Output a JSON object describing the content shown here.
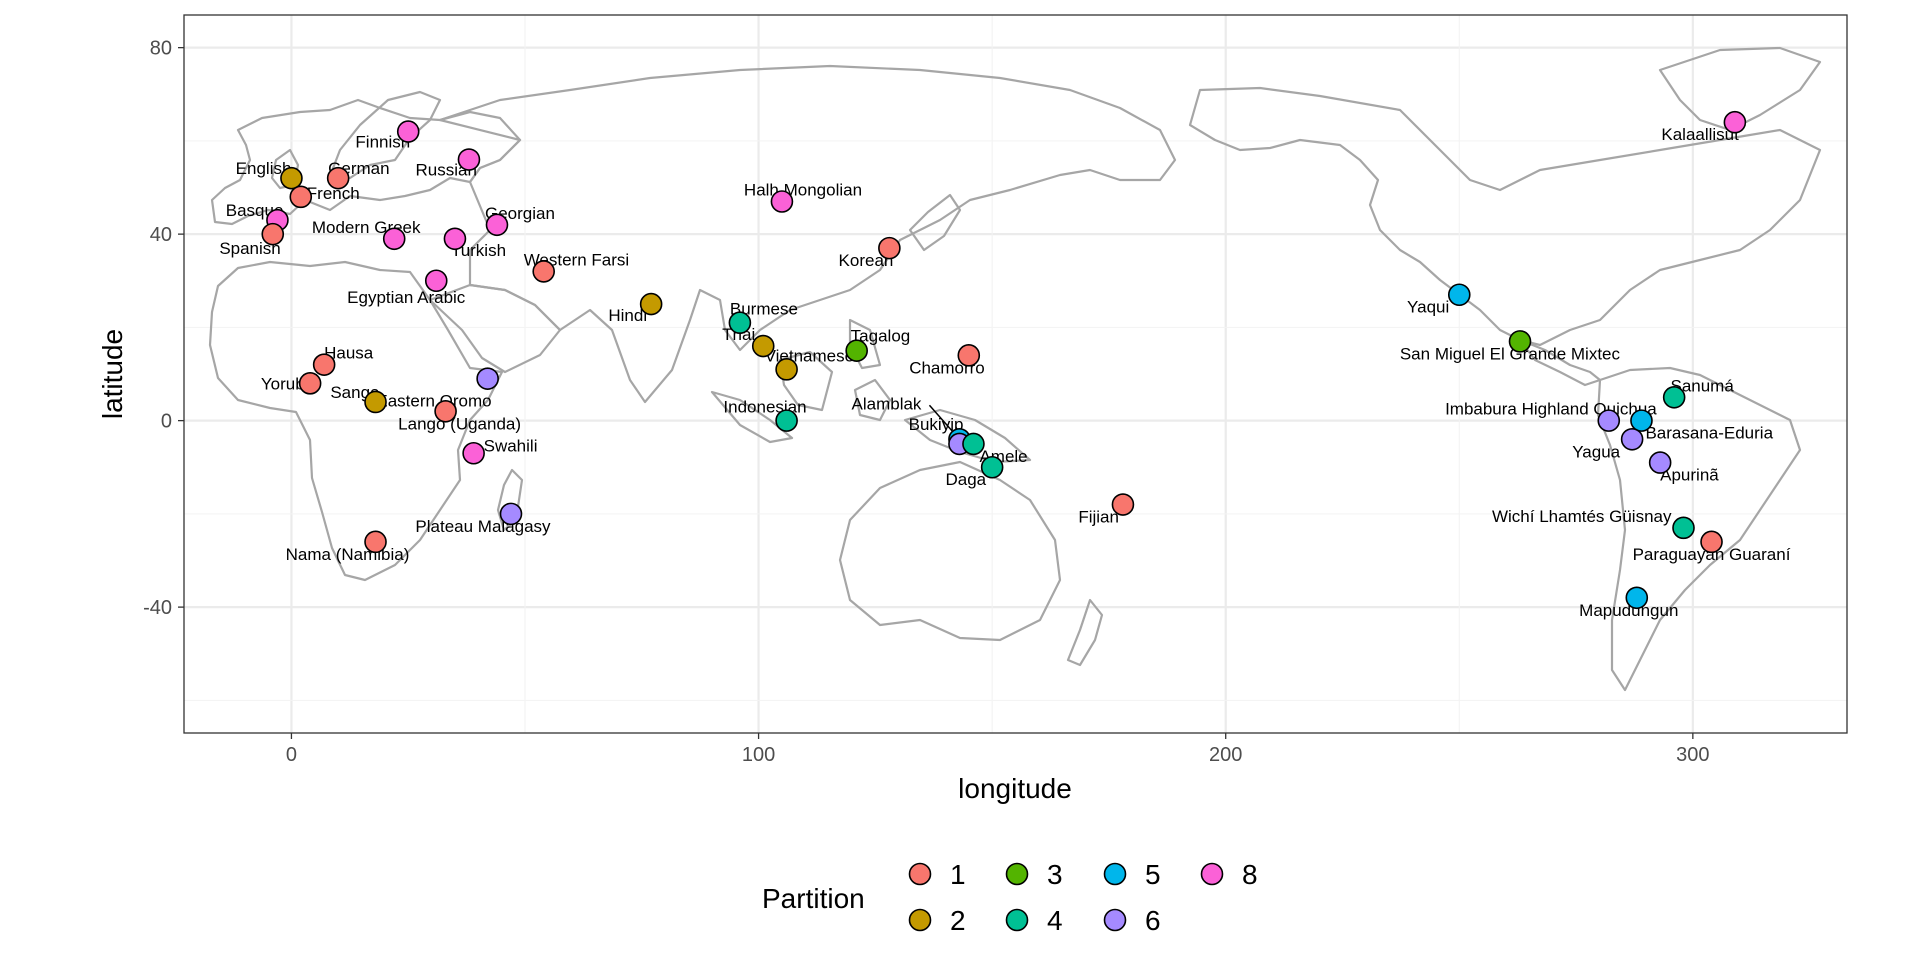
{
  "chart_data": {
    "type": "scatter",
    "xlabel": "longitude",
    "ylabel": "latitude",
    "xlim": [
      -23,
      333
    ],
    "ylim": [
      -67,
      87
    ],
    "x_ticks": [
      0,
      100,
      200,
      300
    ],
    "y_ticks": [
      80,
      40,
      0,
      -40
    ],
    "x_tick_labels": [
      "0",
      "100",
      "200",
      "300"
    ],
    "y_tick_labels": [
      "80",
      "40",
      "0",
      "-40"
    ],
    "grid": true,
    "legend": {
      "title": "Partition",
      "placement": "bottom",
      "entries": [
        {
          "label": "1",
          "color": "#F8766D"
        },
        {
          "label": "2",
          "color": "#C49A00"
        },
        {
          "label": "3",
          "color": "#53B400"
        },
        {
          "label": "4",
          "color": "#00C094"
        },
        {
          "label": "5",
          "color": "#00B6EB"
        },
        {
          "label": "6",
          "color": "#A58AFF"
        },
        {
          "label": "8",
          "color": "#FB61D7"
        }
      ]
    },
    "points": [
      {
        "name": "English",
        "lon": 0,
        "lat": 52,
        "partition": "2",
        "anchor": "end",
        "dx": 0,
        "dy": -4
      },
      {
        "name": "German",
        "lon": 10,
        "lat": 52,
        "partition": "1",
        "anchor": "start",
        "dx": -10,
        "dy": -4
      },
      {
        "name": "French",
        "lon": 2,
        "lat": 48,
        "partition": "1",
        "anchor": "start",
        "dx": 6,
        "dy": 2
      },
      {
        "name": "Finnish",
        "lon": 25,
        "lat": 62,
        "partition": "8",
        "anchor": "end",
        "dx": 2,
        "dy": 16
      },
      {
        "name": "Russian",
        "lon": 38,
        "lat": 56,
        "partition": "8",
        "anchor": "end",
        "dx": 8,
        "dy": 16
      },
      {
        "name": "Basque",
        "lon": -3,
        "lat": 43,
        "partition": "8",
        "anchor": "end",
        "dx": 6,
        "dy": -4
      },
      {
        "name": "Modern Greek",
        "lon": 22,
        "lat": 39,
        "partition": "8",
        "anchor": "middle",
        "dx": -28,
        "dy": -6
      },
      {
        "name": "Spanish",
        "lon": -4,
        "lat": 40,
        "partition": "1",
        "anchor": "end",
        "dx": 8,
        "dy": 20
      },
      {
        "name": "Georgian",
        "lon": 44,
        "lat": 42,
        "partition": "8",
        "anchor": "start",
        "dx": -12,
        "dy": -6
      },
      {
        "name": "Turkish",
        "lon": 35,
        "lat": 39,
        "partition": "8",
        "anchor": "start",
        "dx": -4,
        "dy": 17
      },
      {
        "name": "Western Farsi",
        "lon": 54,
        "lat": 32,
        "partition": "1",
        "anchor": "start",
        "dx": -20,
        "dy": -6
      },
      {
        "name": "Egyptian Arabic",
        "lon": 31,
        "lat": 30,
        "partition": "8",
        "anchor": "middle",
        "dx": -30,
        "dy": 22
      },
      {
        "name": "Halh Mongolian",
        "lon": 105,
        "lat": 47,
        "partition": "8",
        "anchor": "start",
        "dx": -38,
        "dy": -6
      },
      {
        "name": "Korean",
        "lon": 128,
        "lat": 37,
        "partition": "1",
        "anchor": "end",
        "dx": 4,
        "dy": 18
      },
      {
        "name": "Hindi",
        "lon": 77,
        "lat": 25,
        "partition": "2",
        "anchor": "end",
        "dx": -4,
        "dy": 17
      },
      {
        "name": "Burmese",
        "lon": 96,
        "lat": 21,
        "partition": "4",
        "anchor": "start",
        "dx": -10,
        "dy": -8
      },
      {
        "name": "Thai",
        "lon": 101,
        "lat": 16,
        "partition": "2",
        "anchor": "end",
        "dx": -8,
        "dy": -6
      },
      {
        "name": "Vietnamese",
        "lon": 106,
        "lat": 11,
        "partition": "2",
        "anchor": "start",
        "dx": -22,
        "dy": -8
      },
      {
        "name": "Tagalog",
        "lon": 121,
        "lat": 15,
        "partition": "3",
        "anchor": "start",
        "dx": -6,
        "dy": -9
      },
      {
        "name": "Chamorro",
        "lon": 145,
        "lat": 14,
        "partition": "1",
        "anchor": "end",
        "dx": 16,
        "dy": 18
      },
      {
        "name": "Indonesian",
        "lon": 106,
        "lat": 0,
        "partition": "4",
        "anchor": "end",
        "dx": 20,
        "dy": -8
      },
      {
        "name": "Alamblak",
        "lon": 143,
        "lat": -4,
        "partition": "5",
        "anchor": "end",
        "dx": -38,
        "dy": -30
      },
      {
        "name": "Bukiyip",
        "lon": 143,
        "lat": -5,
        "partition": "6",
        "anchor": "end",
        "dx": 4,
        "dy": -14
      },
      {
        "name": "Amele",
        "lon": 146,
        "lat": -5,
        "partition": "4",
        "anchor": "start",
        "dx": 6,
        "dy": 18
      },
      {
        "name": "Daga",
        "lon": 150,
        "lat": -10,
        "partition": "4",
        "anchor": "end",
        "dx": -6,
        "dy": 18
      },
      {
        "name": "Fijian",
        "lon": 178,
        "lat": -18,
        "partition": "1",
        "anchor": "end",
        "dx": -4,
        "dy": 18
      },
      {
        "name": "Hausa",
        "lon": 7,
        "lat": 12,
        "partition": "1",
        "anchor": "start",
        "dx": 0,
        "dy": -6
      },
      {
        "name": "Yoruba",
        "lon": 4,
        "lat": 8,
        "partition": "1",
        "anchor": "end",
        "dx": 4,
        "dy": 6
      },
      {
        "name": "Sango",
        "lon": 18,
        "lat": 4,
        "partition": "2",
        "anchor": "end",
        "dx": 4,
        "dy": -4
      },
      {
        "name": "Eastern Oromo",
        "lon": 42,
        "lat": 9,
        "partition": "6",
        "anchor": "end",
        "dx": 4,
        "dy": 28
      },
      {
        "name": "Lango (Uganda)",
        "lon": 33,
        "lat": 2,
        "partition": "1",
        "anchor": "middle",
        "dx": 14,
        "dy": 18
      },
      {
        "name": "Swahili",
        "lon": 39,
        "lat": -7,
        "partition": "8",
        "anchor": "start",
        "dx": 10,
        "dy": -2
      },
      {
        "name": "Plateau Malagasy",
        "lon": 47,
        "lat": -20,
        "partition": "6",
        "anchor": "middle",
        "dx": -28,
        "dy": 18
      },
      {
        "name": "Nama (Namibia)",
        "lon": 18,
        "lat": -26,
        "partition": "1",
        "anchor": "middle",
        "dx": -28,
        "dy": 18
      },
      {
        "name": "Kalaallisut",
        "lon": 309,
        "lat": 64,
        "partition": "8",
        "anchor": "end",
        "dx": 4,
        "dy": 18
      },
      {
        "name": "Yaqui",
        "lon": 250,
        "lat": 27,
        "partition": "5",
        "anchor": "end",
        "dx": -10,
        "dy": 18
      },
      {
        "name": "San Miguel El Grande Mixtec",
        "lon": 263,
        "lat": 17,
        "partition": "3",
        "anchor": "end",
        "dx": 100,
        "dy": 18
      },
      {
        "name": "Sanumá",
        "lon": 296,
        "lat": 5,
        "partition": "4",
        "anchor": "middle",
        "dx": 28,
        "dy": -6
      },
      {
        "name": "Imbabura Highland Quichua",
        "lon": 282,
        "lat": 0,
        "partition": "6",
        "anchor": "end",
        "dx": 48,
        "dy": -6
      },
      {
        "name": "Barasana-Eduria",
        "lon": 289,
        "lat": 0,
        "partition": "5",
        "anchor": "start",
        "dx": 4,
        "dy": 18
      },
      {
        "name": "Yagua",
        "lon": 287,
        "lat": -4,
        "partition": "6",
        "anchor": "end",
        "dx": -12,
        "dy": 18
      },
      {
        "name": "Apurinã",
        "lon": 293,
        "lat": -9,
        "partition": "6",
        "anchor": "start",
        "dx": 0,
        "dy": 18
      },
      {
        "name": "Wichí Lhamtés Güisnay",
        "lon": 298,
        "lat": -23,
        "partition": "4",
        "anchor": "end",
        "dx": -12,
        "dy": -6
      },
      {
        "name": "Paraguayan Guaraní",
        "lon": 304,
        "lat": -26,
        "partition": "1",
        "anchor": "middle",
        "dx": 0,
        "dy": 18
      },
      {
        "name": "Mapudungun",
        "lon": 288,
        "lat": -38,
        "partition": "5",
        "anchor": "middle",
        "dx": -8,
        "dy": 18
      }
    ]
  }
}
